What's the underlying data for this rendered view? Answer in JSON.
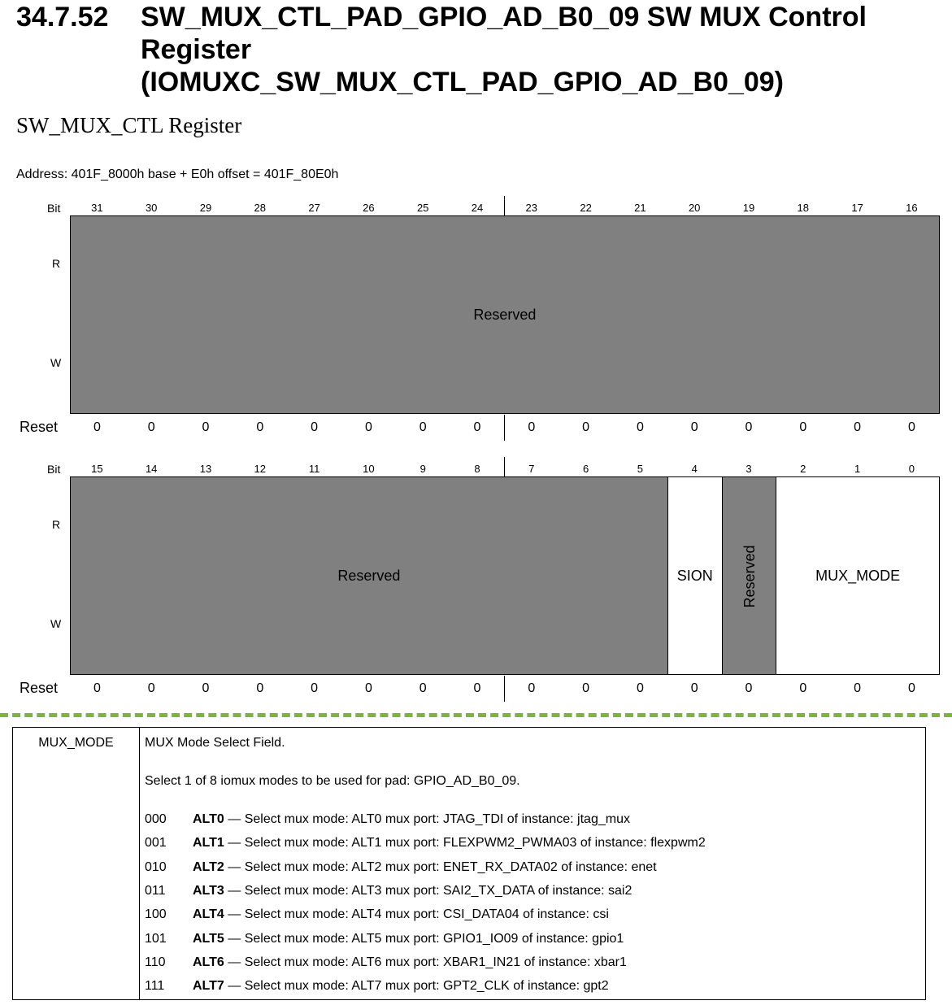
{
  "heading": {
    "number": "34.7.52",
    "lines": [
      "SW_MUX_CTL_PAD_GPIO_AD_B0_09 SW MUX Control",
      "Register",
      "(IOMUXC_SW_MUX_CTL_PAD_GPIO_AD_B0_09)"
    ]
  },
  "subtitle": "SW_MUX_CTL Register",
  "address": "Address: 401F_8000h base + E0h offset = 401F_80E0h",
  "register": {
    "bit_label": "Bit",
    "read_label": "R",
    "write_label": "W",
    "reset_label": "Reset",
    "upper": {
      "bits": [
        "31",
        "30",
        "29",
        "28",
        "27",
        "26",
        "25",
        "24",
        "23",
        "22",
        "21",
        "20",
        "19",
        "18",
        "17",
        "16"
      ],
      "reset": [
        "0",
        "0",
        "0",
        "0",
        "0",
        "0",
        "0",
        "0",
        "0",
        "0",
        "0",
        "0",
        "0",
        "0",
        "0",
        "0"
      ],
      "fields": [
        {
          "name": "Reserved",
          "from_bit": 31,
          "to_bit": 16,
          "reserved": true
        }
      ]
    },
    "lower": {
      "bits": [
        "15",
        "14",
        "13",
        "12",
        "11",
        "10",
        "9",
        "8",
        "7",
        "6",
        "5",
        "4",
        "3",
        "2",
        "1",
        "0"
      ],
      "reset": [
        "0",
        "0",
        "0",
        "0",
        "0",
        "0",
        "0",
        "0",
        "0",
        "0",
        "0",
        "0",
        "0",
        "0",
        "0",
        "0"
      ],
      "fields": [
        {
          "name": "Reserved",
          "from_bit": 15,
          "to_bit": 5,
          "reserved": true
        },
        {
          "name": "SION",
          "from_bit": 4,
          "to_bit": 4,
          "reserved": false
        },
        {
          "name": "Reserved",
          "from_bit": 3,
          "to_bit": 3,
          "reserved": true,
          "vertical": true
        },
        {
          "name": "MUX_MODE",
          "from_bit": 2,
          "to_bit": 0,
          "reserved": false
        }
      ]
    }
  },
  "field_description": {
    "field": "MUX_MODE",
    "title": "MUX Mode Select Field.",
    "detail": "Select 1 of 8 iomux modes to be used for pad: GPIO_AD_B0_09.",
    "options": [
      {
        "code": "000",
        "alt": "ALT0",
        "text": " — Select mux mode: ALT0 mux port: JTAG_TDI of instance: jtag_mux"
      },
      {
        "code": "001",
        "alt": "ALT1",
        "text": " — Select mux mode: ALT1 mux port: FLEXPWM2_PWMA03 of instance: flexpwm2"
      },
      {
        "code": "010",
        "alt": "ALT2",
        "text": " — Select mux mode: ALT2 mux port: ENET_RX_DATA02 of instance: enet"
      },
      {
        "code": "011",
        "alt": "ALT3",
        "text": " — Select mux mode: ALT3 mux port: SAI2_TX_DATA of instance: sai2"
      },
      {
        "code": "100",
        "alt": "ALT4",
        "text": " — Select mux mode: ALT4 mux port: CSI_DATA04 of instance: csi"
      },
      {
        "code": "101",
        "alt": "ALT5",
        "text": " — Select mux mode: ALT5 mux port: GPIO1_IO09 of instance: gpio1"
      },
      {
        "code": "110",
        "alt": "ALT6",
        "text": " — Select mux mode: ALT6 mux port: XBAR1_IN21 of instance: xbar1"
      },
      {
        "code": "111",
        "alt": "ALT7",
        "text": " — Select mux mode: ALT7 mux port: GPT2_CLK of instance: gpt2"
      }
    ]
  }
}
